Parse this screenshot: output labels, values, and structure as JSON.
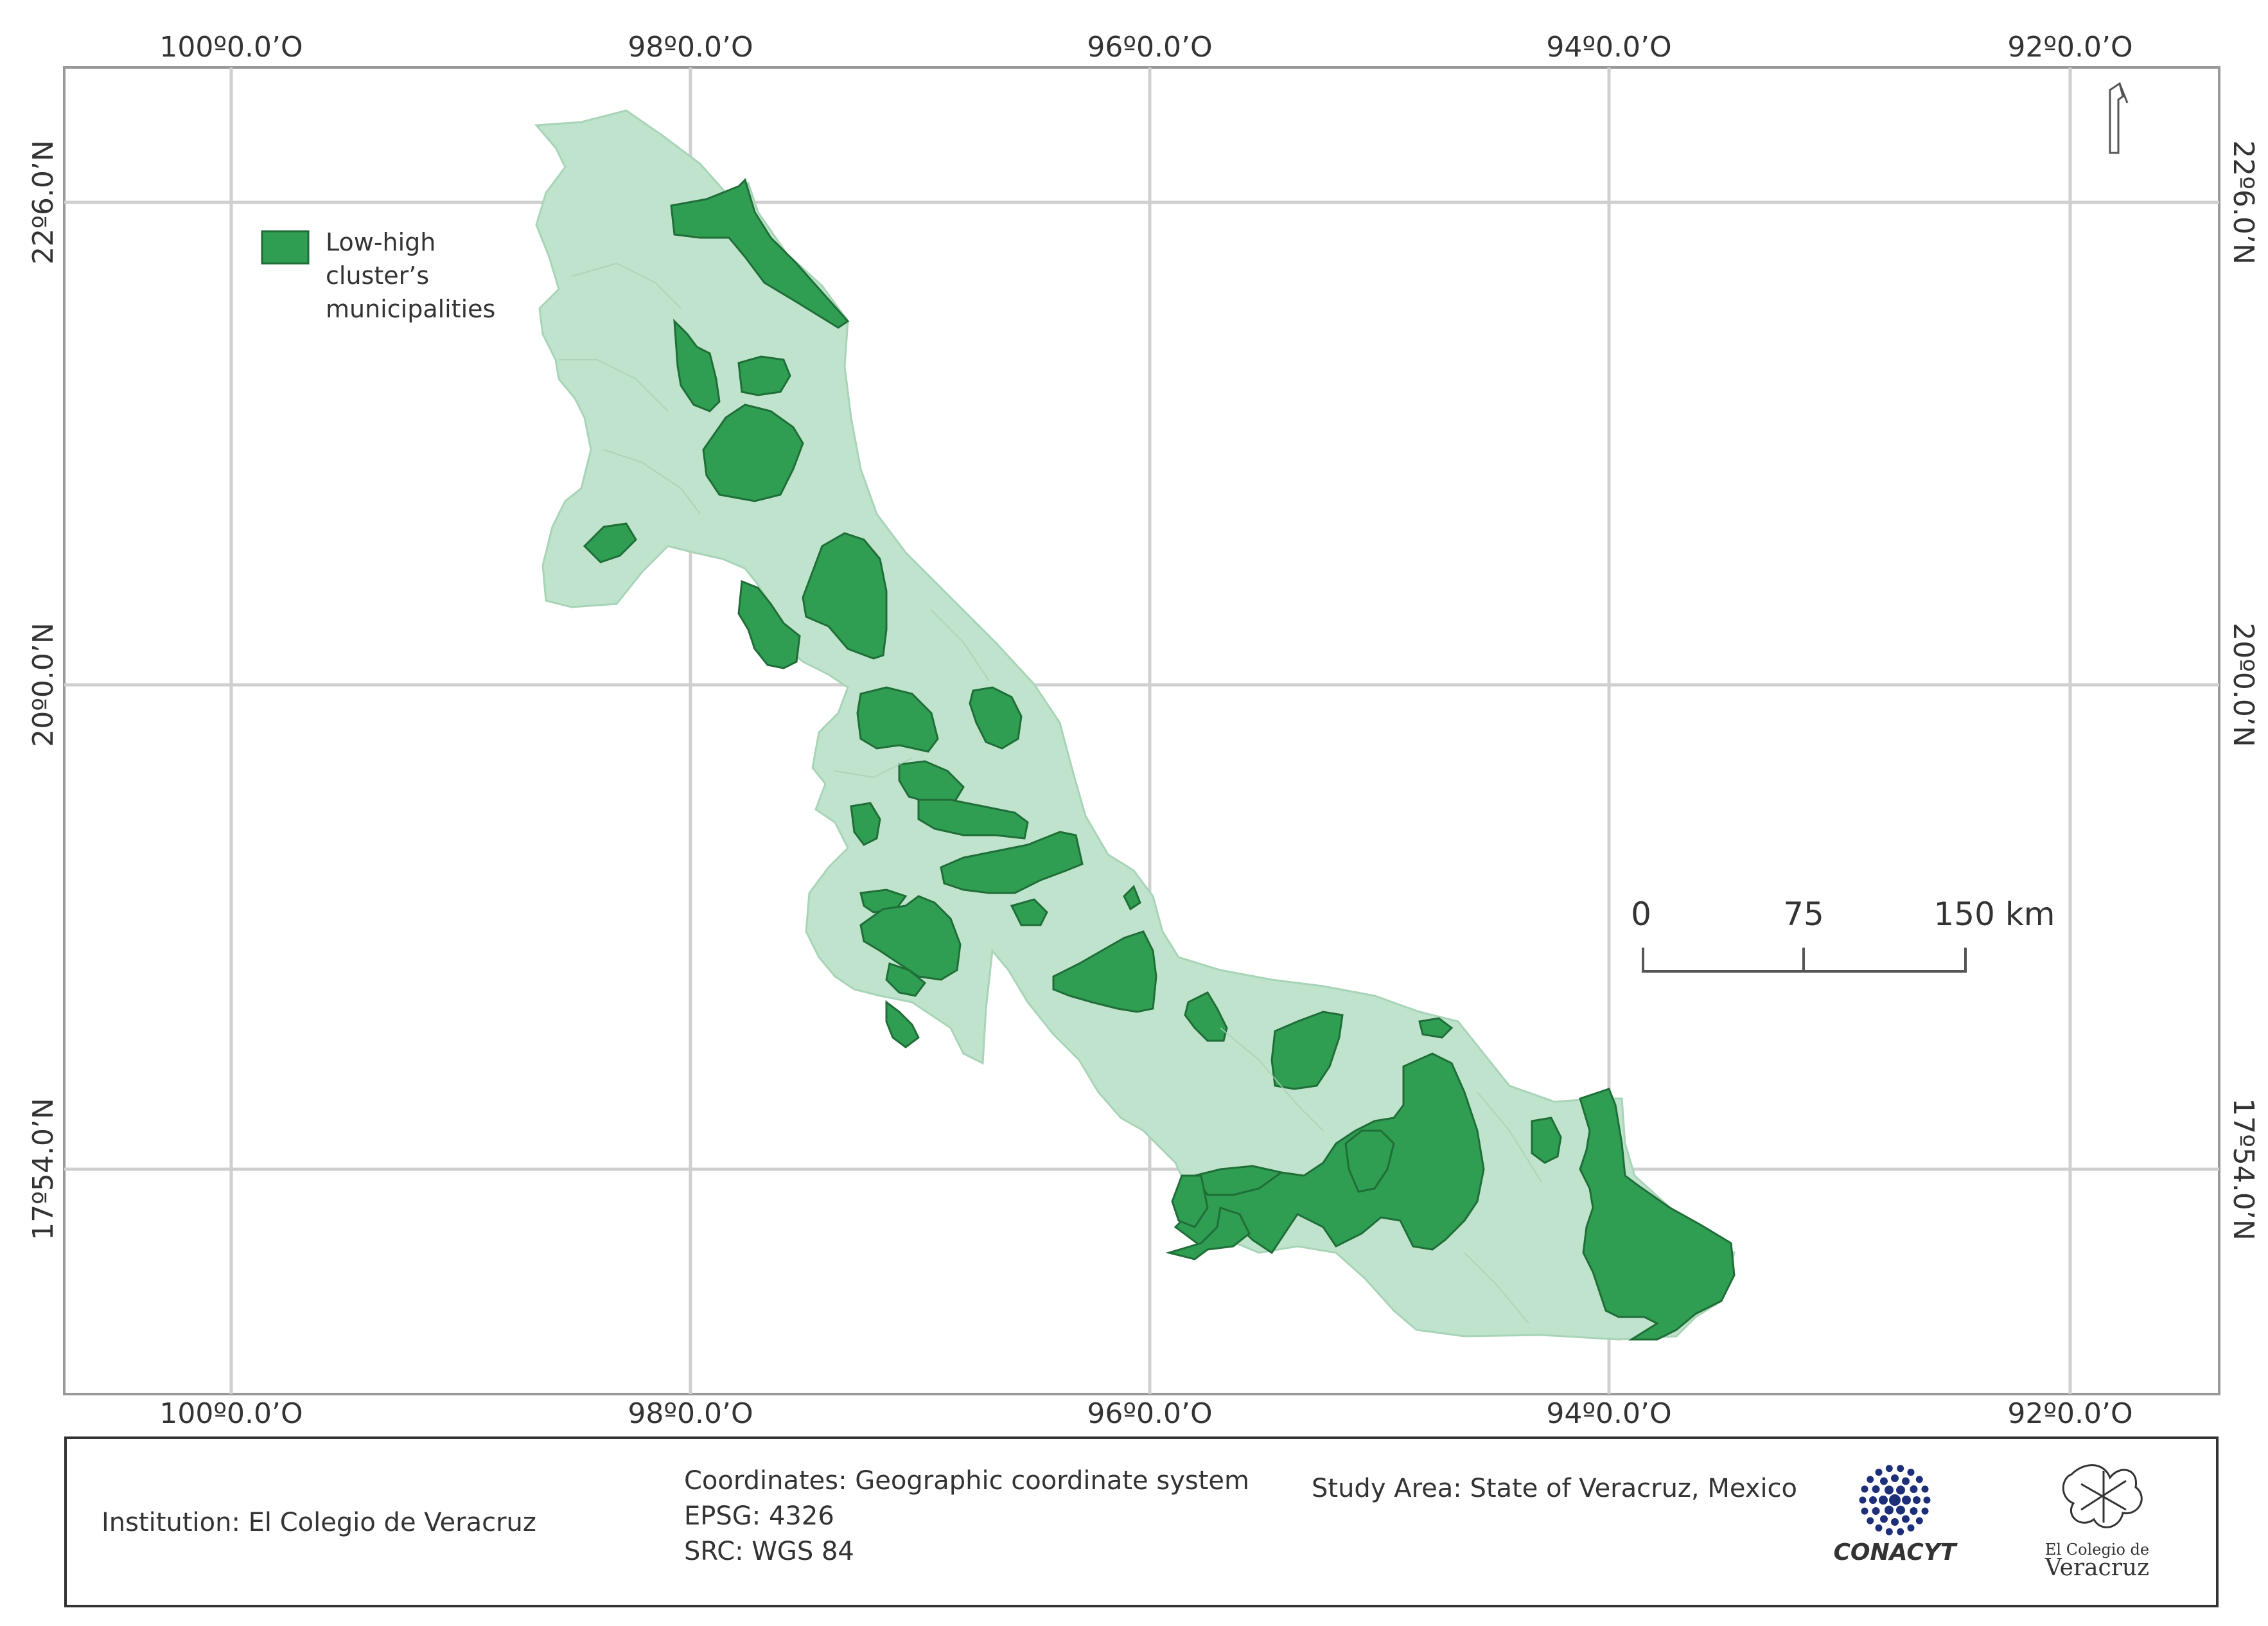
{
  "map": {
    "lon_labels": [
      "100º0.0’O",
      "98º0.0’O",
      "96º0.0’O",
      "94º0.0’O",
      "92º0.0’O"
    ],
    "lat_labels": [
      "22º6.0’N",
      "20º0.0’N",
      "17º54.0’N"
    ],
    "colors": {
      "state_fill": "#bfe3cc",
      "cluster_fill": "#2f9e52",
      "cluster_stroke": "#1f6e37",
      "grid": "#cfcfcf",
      "frame": "#999999"
    }
  },
  "legend": {
    "lines": [
      "Low-high",
      "cluster’s",
      "municipalities"
    ]
  },
  "scale_bar": {
    "labels": [
      "0",
      "75",
      "150 km"
    ]
  },
  "footer": {
    "institution": "Institution: El Colegio de Veracruz",
    "coordinates": "Coordinates: Geographic coordinate system",
    "epsg": "EPSG: 4326",
    "src": "SRC: WGS 84",
    "study_area": "Study Area: State of Veracruz, Mexico",
    "logo_conacyt": "CONACYT",
    "logo_colegio_small": "El Colegio de",
    "logo_colegio": "Veracruz"
  },
  "north_arrow_icon": "north-arrow-icon"
}
